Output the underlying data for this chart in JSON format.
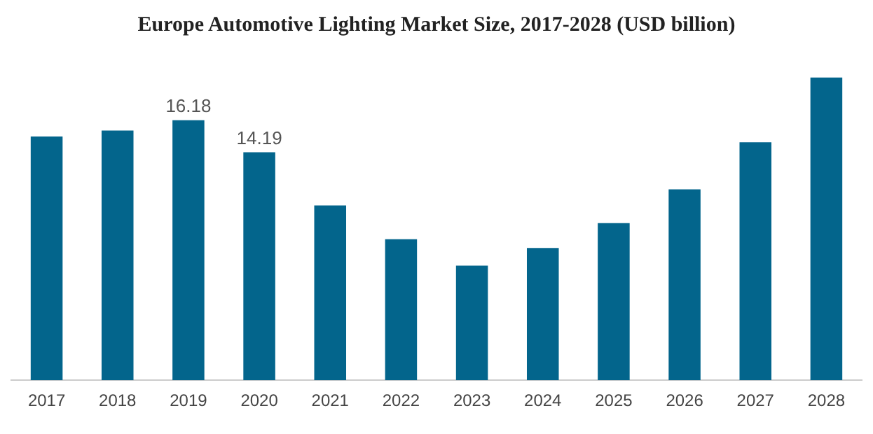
{
  "chart_data": {
    "type": "bar",
    "title": "Europe Automotive Lighting Market Size, 2017-2028 (USD billion)",
    "categories": [
      "2017",
      "2018",
      "2019",
      "2020",
      "2021",
      "2022",
      "2023",
      "2024",
      "2025",
      "2026",
      "2027",
      "2028"
    ],
    "values": [
      15.17,
      15.54,
      16.18,
      14.19,
      10.88,
      8.77,
      7.13,
      8.23,
      9.78,
      11.88,
      14.81,
      18.83
    ],
    "value_labels": [
      null,
      null,
      "16.18",
      "14.19",
      null,
      null,
      null,
      null,
      null,
      null,
      null,
      null
    ],
    "color": "#03658c",
    "grid": false,
    "legend": false
  }
}
